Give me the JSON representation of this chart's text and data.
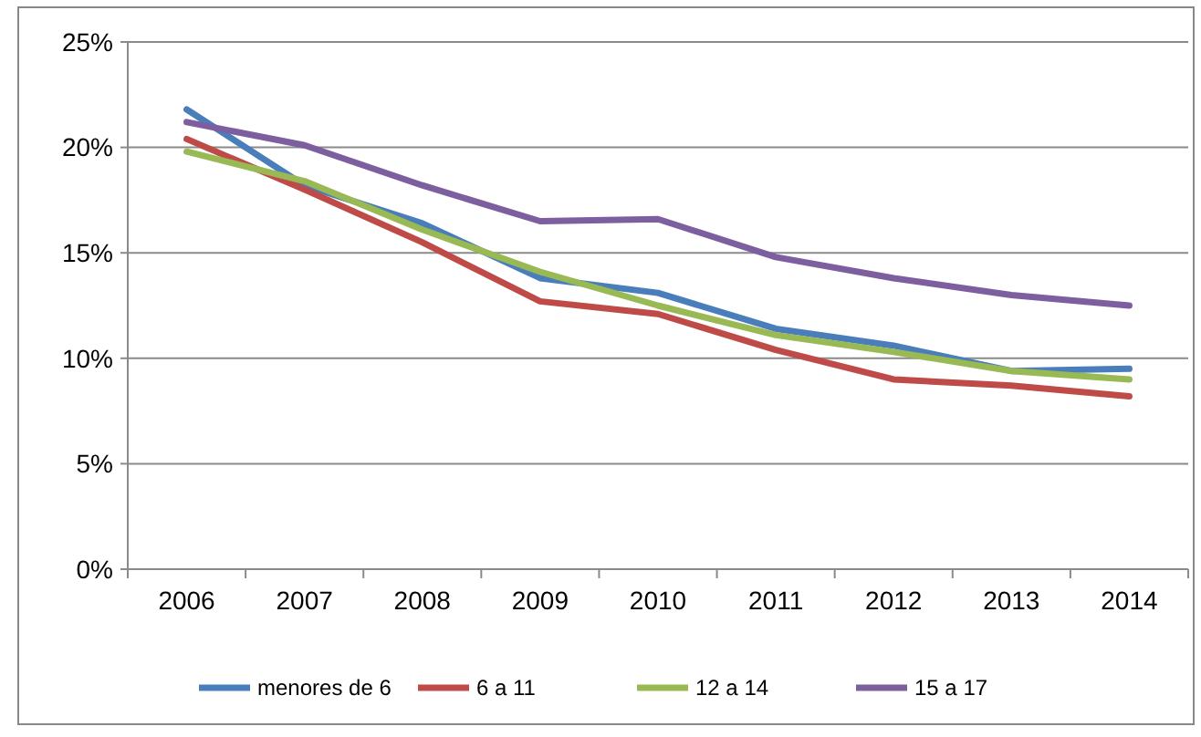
{
  "chart_data": {
    "type": "line",
    "categories": [
      "2006",
      "2007",
      "2008",
      "2009",
      "2010",
      "2011",
      "2012",
      "2013",
      "2014"
    ],
    "series": [
      {
        "name": "menores de 6",
        "color": "#4a7ebb",
        "values": [
          21.8,
          18.2,
          16.4,
          13.8,
          13.1,
          11.4,
          10.6,
          9.4,
          9.5
        ]
      },
      {
        "name": "6 a 11",
        "color": "#be4b48",
        "values": [
          20.4,
          18.0,
          15.5,
          12.7,
          12.1,
          10.4,
          9.0,
          8.7,
          8.2
        ]
      },
      {
        "name": "12 a 14",
        "color": "#98b954",
        "values": [
          19.8,
          18.4,
          16.1,
          14.1,
          12.5,
          11.1,
          10.3,
          9.4,
          9.0
        ]
      },
      {
        "name": "15 a 17",
        "color": "#7d5fa0",
        "values": [
          21.2,
          20.1,
          18.2,
          16.5,
          16.6,
          14.8,
          13.8,
          13.0,
          12.5
        ]
      }
    ],
    "ylim": [
      0,
      25
    ],
    "yticks": [
      {
        "value": 0,
        "label": "0%"
      },
      {
        "value": 5,
        "label": "5%"
      },
      {
        "value": 10,
        "label": "10%"
      },
      {
        "value": 15,
        "label": "15%"
      },
      {
        "value": 20,
        "label": "20%"
      },
      {
        "value": 25,
        "label": "25%"
      }
    ],
    "grid": "y",
    "legend": "bottom",
    "marker": "none",
    "line_style": "solid"
  }
}
